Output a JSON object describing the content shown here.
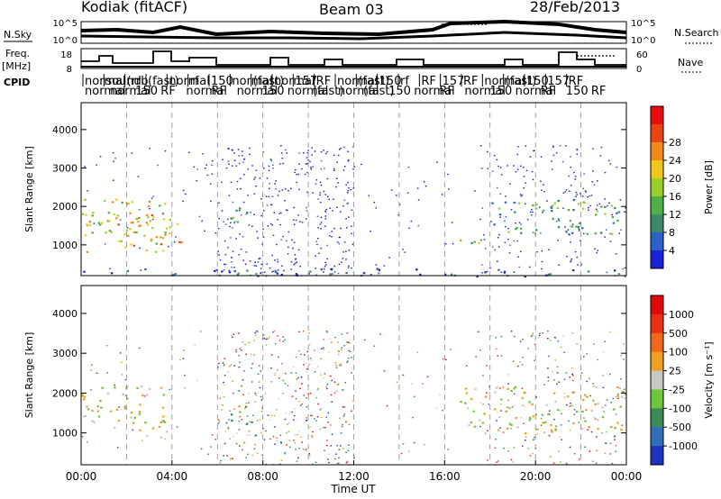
{
  "header": {
    "station": "Kodiak (fitACF)",
    "beam": "Beam 03",
    "date": "28/Feb/2013"
  },
  "top_panels": {
    "nsky_label": "N.Sky",
    "nsky_ticks": [
      "10^5",
      "10^0"
    ],
    "nsearch_label": "N.Search",
    "nsearch_ticks": [
      "10^5",
      "10^0"
    ],
    "freq_label_1": "Freq.",
    "freq_label_2": "[MHz]",
    "freq_ticks": [
      "18",
      "8"
    ],
    "nave_label": "Nave",
    "nave_ticks": [
      "60",
      "0"
    ],
    "cpid_label": "CPID",
    "cpid_row1": [
      "normal",
      "sound",
      "(rrb",
      "(fast)",
      "normal",
      "rf",
      "150",
      "normal",
      "(fast)",
      "normal",
      "157",
      "RF",
      "normal",
      "(fast)",
      "150",
      "rf",
      "RF",
      "157",
      "RF",
      "normal",
      "(fast)",
      "150",
      "157",
      "RF"
    ],
    "cpid_row2": [
      "normal",
      "normal",
      "150",
      "RF",
      "normal",
      "RF",
      "normal",
      "150",
      "normal",
      "(fast)",
      "normal",
      "(fast)",
      "150",
      "normal",
      "RF",
      "normal",
      "150",
      "normal",
      "RF",
      "150",
      "RF"
    ]
  },
  "chart_data": [
    {
      "type": "heatmap",
      "name": "Power",
      "ylabel": "Slant Range [km]",
      "xlabel": "",
      "yticks": [
        "1000",
        "2000",
        "3000",
        "4000"
      ],
      "ylim": [
        200,
        4700
      ],
      "xlim": [
        0,
        24
      ],
      "colorbar_label": "Power [dB]",
      "colorbar_ticks": [
        "4",
        "8",
        "12",
        "16",
        "20",
        "24",
        "28"
      ],
      "colorbar_colors": [
        "#1a22d8",
        "#2a62c8",
        "#3c8a6a",
        "#4fb048",
        "#9cce2a",
        "#f0c81c",
        "#f08a18",
        "#e84414",
        "#e80c0c"
      ],
      "echo_regions": [
        {
          "t0": 0.0,
          "t1": 3.8,
          "r0": 800,
          "r1": 2200,
          "level": 20
        },
        {
          "t0": 1.5,
          "t1": 4.5,
          "r0": 1000,
          "r1": 1800,
          "level": 24
        },
        {
          "t0": 6.3,
          "t1": 7.6,
          "r0": 1600,
          "r1": 2000,
          "level": 14
        },
        {
          "t0": 16.6,
          "t1": 17.9,
          "r0": 1000,
          "r1": 1300,
          "level": 18
        },
        {
          "t0": 17.9,
          "t1": 24.0,
          "r0": 1300,
          "r1": 2200,
          "level": 12
        },
        {
          "t0": 0.0,
          "t1": 24.0,
          "r0": 200,
          "r1": 400,
          "level": 6
        }
      ]
    },
    {
      "type": "heatmap",
      "name": "Velocity",
      "ylabel": "Slant Range [km]",
      "xlabel": "Time UT",
      "yticks": [
        "1000",
        "2000",
        "3000",
        "4000"
      ],
      "xticks": [
        "00:00",
        "04:00",
        "08:00",
        "12:00",
        "16:00",
        "20:00",
        "00:00"
      ],
      "ylim": [
        200,
        4700
      ],
      "xlim": [
        0,
        24
      ],
      "colorbar_label": "Velocity [m s⁻¹]",
      "colorbar_ticks": [
        "1000",
        "500",
        "100",
        "25",
        "-25",
        "-100",
        "-500",
        "-1000"
      ],
      "colorbar_colors": [
        "#2030c0",
        "#2f6fb8",
        "#3a8a5a",
        "#6cc83a",
        "#c8c8c0",
        "#f0a020",
        "#f06818",
        "#e83014",
        "#e00808"
      ],
      "echo_regions": [
        {
          "t0": 0.0,
          "t1": 3.8,
          "r0": 900,
          "r1": 2200,
          "level": 0
        },
        {
          "t0": 16.6,
          "t1": 24.0,
          "r0": 1000,
          "r1": 2200,
          "level": 0
        },
        {
          "t0": 6.3,
          "t1": 7.6,
          "r0": 1200,
          "r1": 1700,
          "level": 150
        }
      ]
    }
  ]
}
